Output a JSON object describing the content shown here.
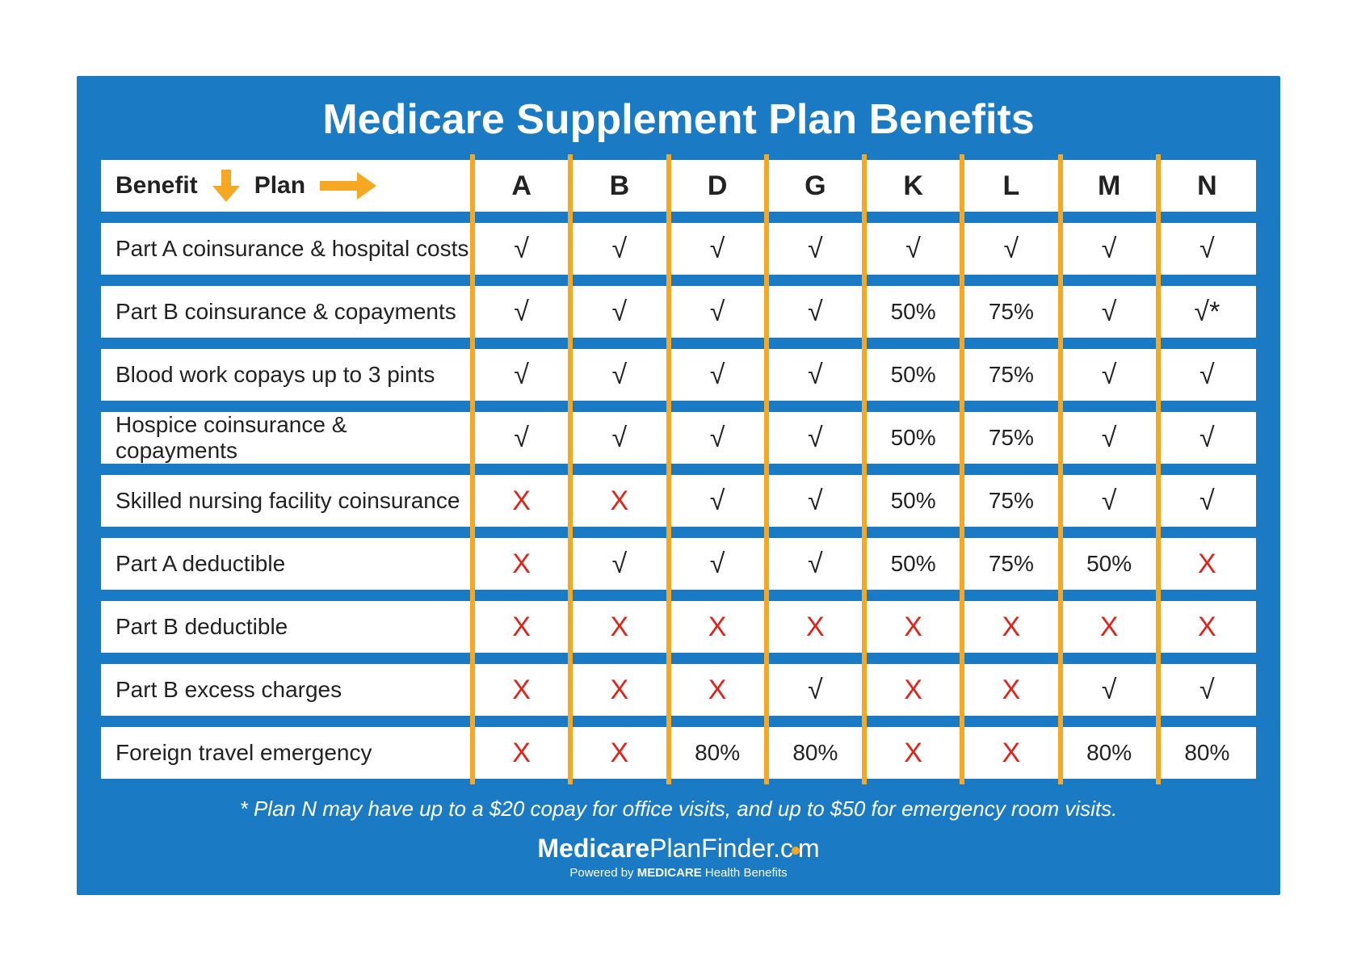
{
  "colors": {
    "background": "#1a7bc4",
    "cell_bg": "#ffffff",
    "separator": "#f7a823",
    "text": "#222222",
    "cross": "#e2231a",
    "title": "#ffffff"
  },
  "title": "Medicare Supplement Plan Benefits",
  "header": {
    "benefit_label": "Benefit",
    "plan_label": "Plan",
    "plans": [
      "A",
      "B",
      "D",
      "G",
      "K",
      "L",
      "M",
      "N"
    ]
  },
  "rows": [
    {
      "label": "Part A coinsurance & hospital costs",
      "cells": [
        "✓",
        "✓",
        "✓",
        "✓",
        "✓",
        "✓",
        "✓",
        "✓"
      ]
    },
    {
      "label": "Part B coinsurance & copayments",
      "cells": [
        "✓",
        "✓",
        "✓",
        "✓",
        "50%",
        "75%",
        "✓",
        "✓*"
      ]
    },
    {
      "label": "Blood work copays up to 3 pints",
      "cells": [
        "✓",
        "✓",
        "✓",
        "✓",
        "50%",
        "75%",
        "✓",
        "✓"
      ]
    },
    {
      "label": "Hospice coinsurance & copayments",
      "cells": [
        "✓",
        "✓",
        "✓",
        "✓",
        "50%",
        "75%",
        "✓",
        "✓"
      ]
    },
    {
      "label": "Skilled nursing facility coinsurance",
      "cells": [
        "X",
        "X",
        "✓",
        "✓",
        "50%",
        "75%",
        "✓",
        "✓"
      ]
    },
    {
      "label": "Part A deductible",
      "cells": [
        "X",
        "✓",
        "✓",
        "✓",
        "50%",
        "75%",
        "50%",
        "X"
      ]
    },
    {
      "label": "Part B deductible",
      "cells": [
        "X",
        "X",
        "X",
        "X",
        "X",
        "X",
        "X",
        "X"
      ]
    },
    {
      "label": "Part B excess charges",
      "cells": [
        "X",
        "X",
        "X",
        "✓",
        "X",
        "X",
        "✓",
        "✓"
      ]
    },
    {
      "label": "Foreign travel emergency",
      "cells": [
        "X",
        "X",
        "80%",
        "80%",
        "X",
        "X",
        "80%",
        "80%"
      ]
    }
  ],
  "footnote": "* Plan N may have up to a $20 copay for office visits, and up to $50 for emergency room visits.",
  "brand": {
    "bold1": "Medicare",
    "thin1": "PlanFinder.c",
    "thin2": "m",
    "sub_prefix": "Powered by ",
    "sub_bold": "MEDICARE",
    "sub_rest": " Health Benefits"
  },
  "glyphs": {
    "check": "√",
    "cross": "X"
  }
}
